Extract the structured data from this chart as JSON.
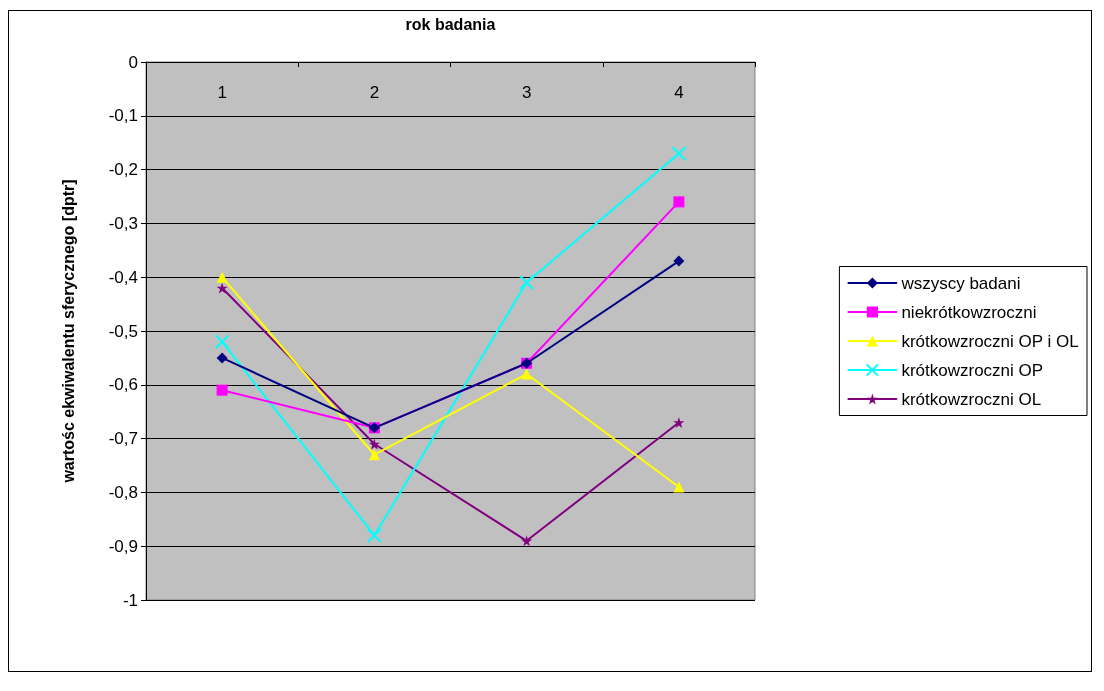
{
  "chart_data": {
    "type": "line",
    "xlabel": "rok badania",
    "ylabel": "wartośc ekwiwalentu sferycznego [dptr]",
    "categories": [
      "1",
      "2",
      "3",
      "4"
    ],
    "series": [
      {
        "name": "wszyscy badani",
        "color": "#000080",
        "marker": "diamond",
        "values": [
          -0.55,
          -0.68,
          -0.56,
          -0.37
        ]
      },
      {
        "name": "niekrótkowzroczni",
        "color": "#ff00ff",
        "marker": "square",
        "values": [
          -0.61,
          -0.68,
          -0.56,
          -0.26
        ]
      },
      {
        "name": "krótkowzroczni OP i OL",
        "color": "#ffff00",
        "marker": "triangle",
        "values": [
          -0.4,
          -0.73,
          -0.58,
          -0.79
        ]
      },
      {
        "name": "krótkowzroczni OP",
        "color": "#00ffff",
        "marker": "cross",
        "values": [
          -0.52,
          -0.88,
          -0.41,
          -0.17
        ]
      },
      {
        "name": "krótkowzroczni OL",
        "color": "#800080",
        "marker": "star",
        "values": [
          -0.42,
          -0.71,
          -0.89,
          -0.67
        ]
      }
    ],
    "ylim": [
      -1,
      0
    ],
    "yticks": [
      -1,
      {
        "value": -0.9,
        "label": "-0,9"
      },
      {
        "value": -0.8,
        "label": "-0,8"
      },
      {
        "value": -0.7,
        "label": "-0,7"
      },
      {
        "value": -0.6,
        "label": "-0,6"
      },
      {
        "value": -0.5,
        "label": "-0,5"
      },
      {
        "value": -0.4,
        "label": "-0,4"
      },
      {
        "value": -0.3,
        "label": "-0,3"
      },
      {
        "value": -0.2,
        "label": "-0,2"
      },
      {
        "value": -0.1,
        "label": "-0,1"
      },
      0
    ],
    "grid": "y",
    "legend": "right",
    "line_style": "solid"
  }
}
